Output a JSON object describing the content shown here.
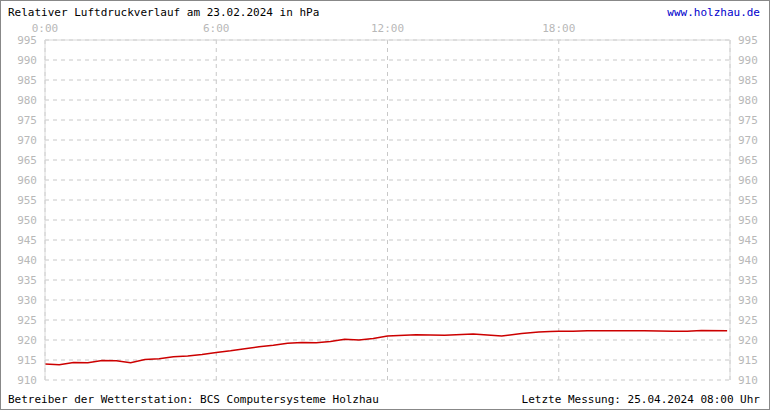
{
  "chart_data": {
    "type": "line",
    "title": "Relativer Luftdruckverlauf am 23.02.2024 in hPa",
    "link": "www.holzhau.de",
    "operator": "Betreiber der Wetterstation: BCS Computersysteme Holzhau",
    "last_measurement": "Letzte Messung: 25.04.2024 08:00 Uhr",
    "x": [
      0,
      0.5,
      1,
      1.5,
      2,
      2.5,
      3,
      3.5,
      4,
      4.5,
      5,
      5.5,
      6,
      6.5,
      7,
      7.5,
      8,
      8.5,
      9,
      9.5,
      10,
      10.5,
      11,
      11.5,
      12,
      13,
      14,
      15,
      16,
      16.7,
      17.3,
      17.7,
      18,
      18.5,
      19,
      19.5,
      20,
      21,
      22,
      22.5,
      23,
      23.9
    ],
    "series": [
      {
        "name": "Luftdruck",
        "color": "#cc0000",
        "values": [
          914,
          913.8,
          914.4,
          914.3,
          914.9,
          914.8,
          914.3,
          915.1,
          915.3,
          915.8,
          916,
          916.4,
          916.9,
          917.3,
          917.8,
          918.3,
          918.7,
          919.2,
          919.4,
          919.3,
          919.6,
          920.2,
          920,
          920.4,
          921,
          921.3,
          921.2,
          921.5,
          921,
          921.6,
          922,
          922.1,
          922.2,
          922.2,
          922.3,
          922.3,
          922.3,
          922.3,
          922.2,
          922.2,
          922.4,
          922.3
        ]
      }
    ],
    "xlim": [
      0,
      24
    ],
    "xticks": [
      {
        "value": 0,
        "label": "0:00"
      },
      {
        "value": 6,
        "label": "6:00"
      },
      {
        "value": 12,
        "label": "12:00"
      },
      {
        "value": 18,
        "label": "18:00"
      }
    ],
    "ylim": [
      910,
      995
    ],
    "yticks": [
      910,
      915,
      920,
      925,
      930,
      935,
      940,
      945,
      950,
      955,
      960,
      965,
      970,
      975,
      980,
      985,
      990,
      995
    ],
    "grid": true,
    "line_style": "solid",
    "marker": "none"
  }
}
